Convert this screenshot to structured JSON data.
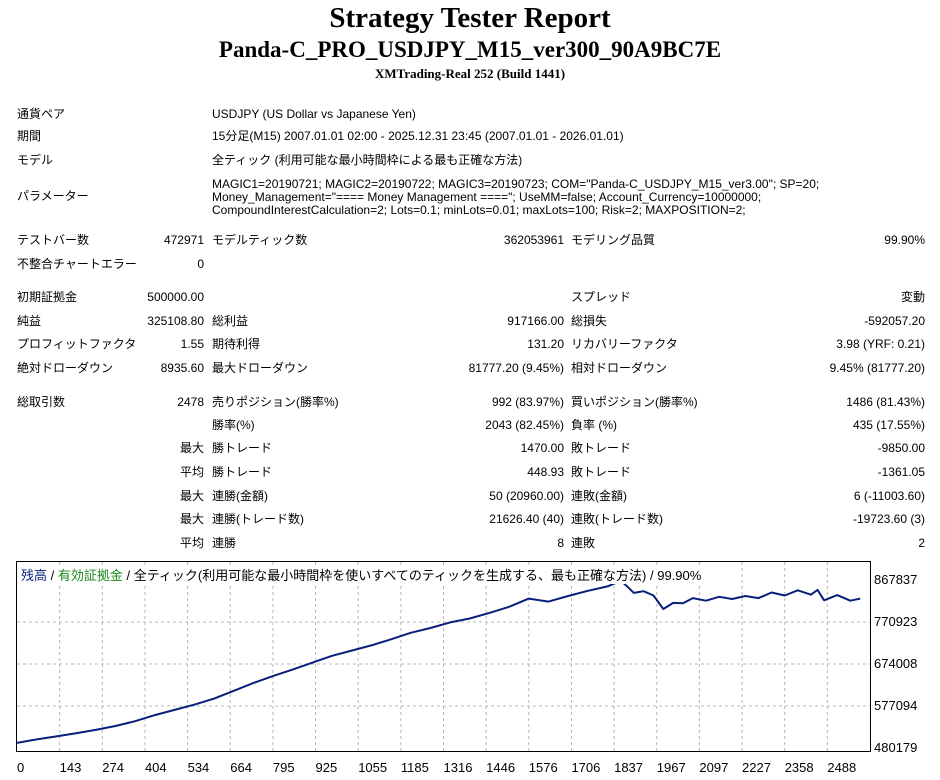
{
  "header": {
    "title": "Strategy Tester Report",
    "subtitle": "Panda-C_PRO_USDJPY_M15_ver300_90A9BC7E",
    "server": "XMTrading-Real 252 (Build 1441)"
  },
  "info": {
    "symbol_label": "通貨ペア",
    "symbol_value": "USDJPY (US Dollar vs Japanese Yen)",
    "period_label": "期間",
    "period_value": "15分足(M15) 2007.01.01 02:00 - 2025.12.31 23:45 (2007.01.01 - 2026.01.01)",
    "model_label": "モデル",
    "model_value": "全ティック (利用可能な最小時間枠による最も正確な方法)",
    "params_label": "パラメーター",
    "params_line1": "MAGIC1=20190721; MAGIC2=20190722; MAGIC3=20190723; COM=\"Panda-C_USDJPY_M15_ver3.00\"; SP=20;",
    "params_line2": "Money_Management=\"==== Money Management ====\"; UseMM=false; Account_Currency=10000000;",
    "params_line3": "CompoundInterestCalculation=2; Lots=0.1; minLots=0.01; maxLots=100; Risk=2; MAXPOSITION=2;"
  },
  "stats": {
    "bars_label": "テストバー数",
    "bars_value": "472971",
    "ticks_label": "モデルティック数",
    "ticks_value": "362053961",
    "quality_label": "モデリング品質",
    "quality_value": "99.90%",
    "mismatch_label": "不整合チャートエラー",
    "mismatch_value": "0",
    "deposit_label": "初期証拠金",
    "deposit_value": "500000.00",
    "spread_label": "スプレッド",
    "spread_value": "変動",
    "net_label": "純益",
    "net_value": "325108.80",
    "gross_profit_label": "総利益",
    "gross_profit_value": "917166.00",
    "gross_loss_label": "総損失",
    "gross_loss_value": "-592057.20",
    "pf_label": "プロフィットファクタ",
    "pf_value": "1.55",
    "expected_label": "期待利得",
    "expected_value": "131.20",
    "recovery_label": "リカバリーファクタ",
    "recovery_value": "3.98 (YRF: 0.21)",
    "abs_dd_label": "絶対ドローダウン",
    "abs_dd_value": "8935.60",
    "max_dd_label": "最大ドローダウン",
    "max_dd_value": "81777.20 (9.45%)",
    "rel_dd_label": "相対ドローダウン",
    "rel_dd_value": "9.45% (81777.20)",
    "trades_label": "総取引数",
    "trades_value": "2478",
    "short_label": "売りポジション(勝率%)",
    "short_value": "992 (83.97%)",
    "long_label": "買いポジション(勝率%)",
    "long_value": "1486 (81.43%)",
    "win_rate_label": "勝率(%)",
    "win_rate_value": "2043 (82.45%)",
    "loss_rate_label": "負率 (%)",
    "loss_rate_value": "435 (17.55%)",
    "largest_prefix": "最大",
    "largest_win_label": "勝トレード",
    "largest_win_value": "1470.00",
    "largest_loss_label": "敗トレード",
    "largest_loss_value": "-9850.00",
    "average_prefix": "平均",
    "avg_win_label": "勝トレード",
    "avg_win_value": "448.93",
    "avg_loss_label": "敗トレード",
    "avg_loss_value": "-1361.05",
    "max_prefix": "最大",
    "max_consec_wins_label": "連勝(金額)",
    "max_consec_wins_value": "50 (20960.00)",
    "max_consec_losses_label": "連敗(金額)",
    "max_consec_losses_value": "6 (-11003.60)",
    "max2_prefix": "最大",
    "max_consec_profit_label": "連勝(トレード数)",
    "max_consec_profit_value": "21626.40 (40)",
    "max_consec_loss_label": "連敗(トレード数)",
    "max_consec_loss_value": "-19723.60 (3)",
    "avg2_prefix": "平均",
    "avg_consec_wins_label": "連勝",
    "avg_consec_wins_value": "8",
    "avg_consec_losses_label": "連敗",
    "avg_consec_losses_value": "2"
  },
  "chart_data": {
    "type": "line",
    "legend": {
      "balance": "残高",
      "sep1": " / ",
      "equity": "有効証拠金",
      "rest": " / 全ティック(利用可能な最小時間枠を使いすべてのティックを生成する、最も正確な方法) / 99.90%"
    },
    "y_ticks": [
      "867837",
      "770923",
      "674008",
      "577094",
      "480179"
    ],
    "x_ticks": [
      "0",
      "143",
      "274",
      "404",
      "534",
      "664",
      "795",
      "925",
      "1055",
      "1185",
      "1316",
      "1446",
      "1576",
      "1706",
      "1837",
      "1967",
      "2097",
      "2227",
      "2358",
      "2488"
    ],
    "ylim": [
      480179,
      867837
    ],
    "xlim": [
      0,
      2600
    ],
    "grid": true,
    "series": [
      {
        "color": "#0a1f7a",
        "x": [
          0,
          60,
          120,
          180,
          240,
          300,
          360,
          420,
          480,
          540,
          600,
          660,
          720,
          780,
          840,
          900,
          960,
          1020,
          1080,
          1140,
          1200,
          1260,
          1320,
          1380,
          1440,
          1500,
          1560,
          1620,
          1680,
          1740,
          1800,
          1840,
          1860,
          1880,
          1910,
          1940,
          1970,
          2000,
          2030,
          2060,
          2100,
          2140,
          2180,
          2220,
          2260,
          2300,
          2340,
          2380,
          2420,
          2440,
          2460,
          2500,
          2540,
          2570
        ],
        "y": [
          492000,
          500000,
          507000,
          514000,
          522000,
          531000,
          542000,
          556000,
          568000,
          580000,
          594000,
          612000,
          630000,
          646000,
          661000,
          677000,
          693000,
          705000,
          717000,
          731000,
          746000,
          757000,
          770000,
          779000,
          792000,
          806000,
          825000,
          818000,
          831000,
          843000,
          853000,
          866000,
          853000,
          838000,
          842000,
          832000,
          801000,
          815000,
          814000,
          826000,
          820000,
          829000,
          824000,
          831000,
          826000,
          839000,
          832000,
          844000,
          834000,
          845000,
          821000,
          833000,
          820000,
          825000
        ]
      }
    ]
  }
}
